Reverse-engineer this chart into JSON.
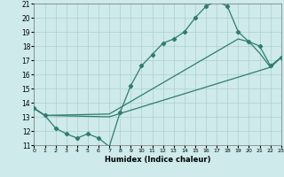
{
  "xlabel": "Humidex (Indice chaleur)",
  "xlim": [
    0,
    23
  ],
  "ylim": [
    11,
    21
  ],
  "xticks": [
    0,
    1,
    2,
    3,
    4,
    5,
    6,
    7,
    8,
    9,
    10,
    11,
    12,
    13,
    14,
    15,
    16,
    17,
    18,
    19,
    20,
    21,
    22,
    23
  ],
  "yticks": [
    11,
    12,
    13,
    14,
    15,
    16,
    17,
    18,
    19,
    20,
    21
  ],
  "background_color": "#ceeaea",
  "grid_color": "#aed0d0",
  "line_color": "#2e7d6e",
  "curve1_x": [
    0,
    1,
    2,
    3,
    4,
    5,
    6,
    7,
    8,
    9,
    10,
    11,
    12,
    13,
    14,
    15,
    16,
    17,
    18,
    19,
    20,
    21,
    22,
    23
  ],
  "curve1_y": [
    13.6,
    13.1,
    12.2,
    11.8,
    11.5,
    11.8,
    11.5,
    10.9,
    13.3,
    15.2,
    16.6,
    17.4,
    18.2,
    18.5,
    19.0,
    20.0,
    20.8,
    21.2,
    20.8,
    19.0,
    18.3,
    18.0,
    16.6,
    17.2
  ],
  "curve2_x": [
    0,
    1,
    7,
    22,
    23
  ],
  "curve2_y": [
    13.6,
    13.1,
    13.0,
    16.5,
    17.2
  ],
  "curve3_x": [
    0,
    1,
    7,
    19,
    20,
    21,
    22,
    23
  ],
  "curve3_y": [
    13.6,
    13.1,
    13.2,
    18.5,
    18.3,
    17.5,
    16.5,
    17.2
  ]
}
